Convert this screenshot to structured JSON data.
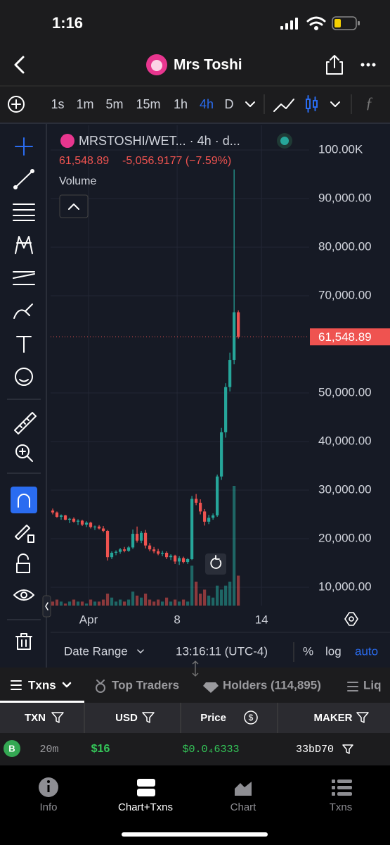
{
  "status_bar": {
    "time": "1:16"
  },
  "header": {
    "title": "Mrs Toshi"
  },
  "timeframes": [
    "1s",
    "1m",
    "5m",
    "15m",
    "1h",
    "4h",
    "D"
  ],
  "selected_timeframe_index": 5,
  "chart_data": {
    "type": "candlestick",
    "title": "MRSTOSHI/WET... · 4h · d...",
    "last_label": "61,548.89",
    "change_label": "-5,056.9177 (−7.59%)",
    "volume_label": "Volume",
    "up_color": "#26a69a",
    "down_color": "#ef5350",
    "open": [
      25800,
      25400,
      24500,
      24800,
      23900,
      24100,
      23500,
      23700,
      22900,
      23300,
      22400,
      22500,
      22100,
      21600,
      16200,
      17100,
      17300,
      17800,
      17500,
      18200,
      21000,
      19600,
      21200,
      18600,
      17800,
      17400,
      16900,
      17100,
      16200,
      16500,
      15300,
      16000,
      15200,
      15800,
      28200,
      27400,
      25600,
      23500,
      24300,
      24800,
      32800,
      41900,
      51200,
      56800,
      66600
    ],
    "high": [
      26200,
      25600,
      25000,
      24900,
      24300,
      24400,
      24000,
      23900,
      23600,
      23500,
      22700,
      22800,
      22600,
      21800,
      17400,
      17600,
      18100,
      18300,
      18500,
      21900,
      22500,
      21600,
      21800,
      19100,
      18300,
      17900,
      17500,
      17400,
      16800,
      16700,
      16400,
      16300,
      16000,
      28800,
      29200,
      28100,
      26100,
      24900,
      25200,
      33200,
      42800,
      52000,
      58300,
      96000,
      67000
    ],
    "low": [
      25000,
      24300,
      23900,
      23800,
      23200,
      23300,
      22800,
      22600,
      22400,
      22100,
      21800,
      21900,
      21300,
      15500,
      15800,
      16600,
      16900,
      17200,
      17300,
      17900,
      19200,
      19100,
      18000,
      17400,
      17000,
      16600,
      16400,
      15800,
      15600,
      14800,
      14600,
      14900,
      14800,
      15600,
      26900,
      25000,
      22700,
      23000,
      23900,
      24500,
      32100,
      40800,
      50300,
      55900,
      61200
    ],
    "close": [
      25400,
      24500,
      24800,
      23900,
      24100,
      23500,
      23700,
      22900,
      23300,
      22400,
      22500,
      22100,
      21600,
      16200,
      17100,
      17300,
      17800,
      17500,
      18200,
      21000,
      19600,
      21200,
      18600,
      17800,
      17400,
      16900,
      17100,
      16200,
      16500,
      15300,
      16000,
      15200,
      15800,
      28200,
      27400,
      25600,
      23500,
      24300,
      24800,
      32800,
      41900,
      51200,
      56800,
      66600,
      61548.89
    ],
    "volume": [
      2,
      3,
      2,
      1,
      2,
      3,
      2,
      2,
      1,
      3,
      2,
      2,
      3,
      6,
      4,
      2,
      3,
      2,
      3,
      7,
      5,
      4,
      6,
      3,
      2,
      3,
      2,
      4,
      2,
      3,
      2,
      3,
      2,
      20,
      12,
      6,
      8,
      5,
      4,
      10,
      8,
      10,
      12,
      60,
      15
    ],
    "ylim": [
      6232,
      105072
    ],
    "yticks": [
      {
        "value": 100000,
        "label": "100.00K"
      },
      {
        "value": 90000,
        "label": "90,000.00"
      },
      {
        "value": 80000,
        "label": "80,000.00"
      },
      {
        "value": 70000,
        "label": "70,000.00"
      },
      {
        "value": 50000,
        "label": "50,000.00"
      },
      {
        "value": 40000,
        "label": "40,000.00"
      },
      {
        "value": 30000,
        "label": "30,000.00"
      },
      {
        "value": 20000,
        "label": "20,000.00"
      },
      {
        "value": 10000,
        "label": "10,000.00"
      }
    ],
    "xlim": [
      -0.5,
      60.8
    ],
    "xticks": [
      {
        "value": 8.5,
        "label": "Apr"
      },
      {
        "value": 29.5,
        "label": "8"
      },
      {
        "value": 49.5,
        "label": "14"
      }
    ],
    "last_price": {
      "value": 61548.89,
      "label": "61,548.89"
    },
    "grid": true
  },
  "chart_footer": {
    "date_range": "Date Range",
    "time": "13:16:11 (UTC-4)",
    "percent": "%",
    "log": "log",
    "auto": "auto"
  },
  "tabs": [
    "Txns",
    "Top Traders",
    "Holders (114,895)",
    "Liq"
  ],
  "table": {
    "headers": [
      "TXN",
      "USD",
      "Price",
      "MAKER"
    ],
    "rows": [
      [
        "B",
        "20m",
        "$16",
        "$0.0₄6333",
        "33bD70"
      ]
    ]
  },
  "nav": [
    "Info",
    "Chart+Txns",
    "Chart",
    "Txns"
  ]
}
